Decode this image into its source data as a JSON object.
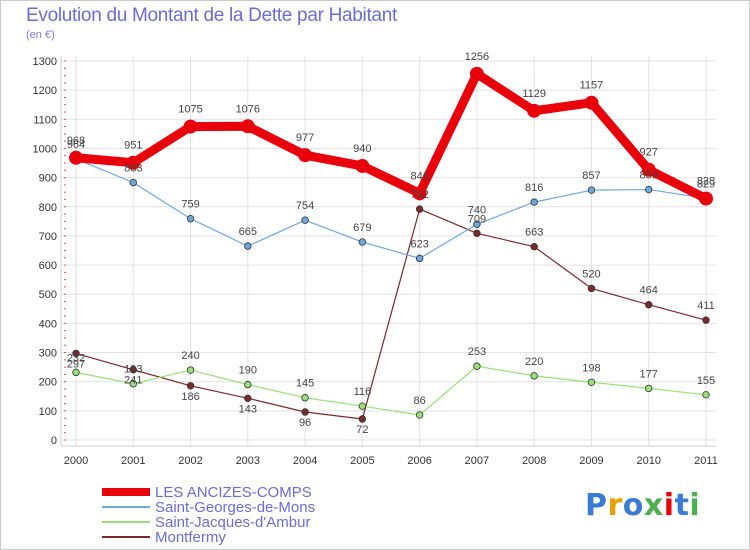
{
  "title": "Evolution du Montant de la Dette par Habitant",
  "subtitle": "(en €)",
  "logo_text": "Proxiti",
  "chart_data": {
    "type": "line",
    "title": "Evolution du Montant de la Dette par Habitant",
    "subtitle": "(en €)",
    "xlabel": "",
    "ylabel": "",
    "x": [
      "2000",
      "2001",
      "2002",
      "2003",
      "2004",
      "2005",
      "2006",
      "2007",
      "2008",
      "2009",
      "2010",
      "2011"
    ],
    "ylim": [
      0,
      1300
    ],
    "yticks": [
      0,
      100,
      200,
      300,
      400,
      500,
      600,
      700,
      800,
      900,
      1000,
      1100,
      1200,
      1300
    ],
    "grid": true,
    "legend_position": "bottom-left",
    "series": [
      {
        "name": "LES ANCIZES-COMPS",
        "color": "#e8000b",
        "width": 9,
        "values": [
          968,
          951,
          1075,
          1076,
          977,
          940,
          846,
          1256,
          1129,
          1157,
          927,
          828
        ]
      },
      {
        "name": "Saint-Georges-de-Mons",
        "color": "#6fa8dc",
        "width": 1.2,
        "values": [
          964,
          883,
          759,
          665,
          754,
          679,
          623,
          740,
          816,
          857,
          859,
          829
        ]
      },
      {
        "name": "Saint-Jacques-d'Ambur",
        "color": "#99e07a",
        "width": 1.2,
        "values": [
          232,
          193,
          240,
          190,
          145,
          116,
          86,
          253,
          220,
          198,
          177,
          155
        ]
      },
      {
        "name": "Montfermy",
        "color": "#7a2a2a",
        "width": 1.2,
        "values": [
          297,
          241,
          186,
          143,
          96,
          72,
          792,
          709,
          663,
          520,
          464,
          411
        ]
      }
    ],
    "labels": [
      [
        "968",
        "951",
        "1075",
        "1076",
        "977",
        "940",
        "846",
        "1256",
        "1129",
        "1157",
        "927",
        "828"
      ],
      [
        "964",
        "883",
        "759",
        "665",
        "754",
        "679",
        "623",
        "740",
        "816",
        "857",
        "859",
        "829"
      ],
      [
        "232",
        "193",
        "240",
        "190",
        "145",
        "116",
        "86",
        "253",
        "220",
        "198",
        "177",
        "155"
      ],
      [
        "297",
        "241",
        "186",
        "143",
        "96",
        "72",
        "792",
        "709",
        "663",
        "520",
        "464",
        "411"
      ]
    ]
  }
}
